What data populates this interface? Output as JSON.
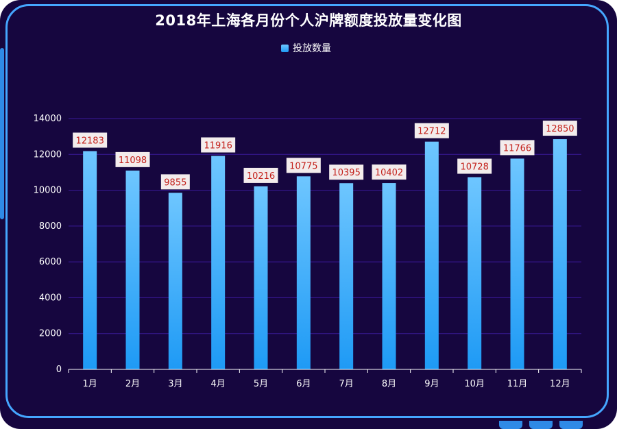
{
  "chart_data": {
    "type": "bar",
    "title": "2018年上海各月份个人沪牌额度投放量变化图",
    "categories": [
      "1月",
      "2月",
      "3月",
      "4月",
      "5月",
      "6月",
      "7月",
      "8月",
      "9月",
      "10月",
      "11月",
      "12月"
    ],
    "series": [
      {
        "name": "投放数量",
        "values": [
          12183,
          11098,
          9855,
          11916,
          10216,
          10775,
          10395,
          10402,
          12712,
          10728,
          11766,
          12850
        ]
      }
    ],
    "ylim": [
      0,
      14000
    ],
    "yticks": [
      "0",
      "2000",
      "4000",
      "6000",
      "8000",
      "10000",
      "12000",
      "14000"
    ],
    "grid": true,
    "legend_position": "top-center"
  },
  "colors": {
    "background": "#16063f",
    "border": "#45a6ff",
    "bar_top": "#6ec6ff",
    "bar_bottom": "#1e9af5",
    "label_text": "#c3201a",
    "label_box": "#f3ecec",
    "grid": "#3a1a9a"
  }
}
